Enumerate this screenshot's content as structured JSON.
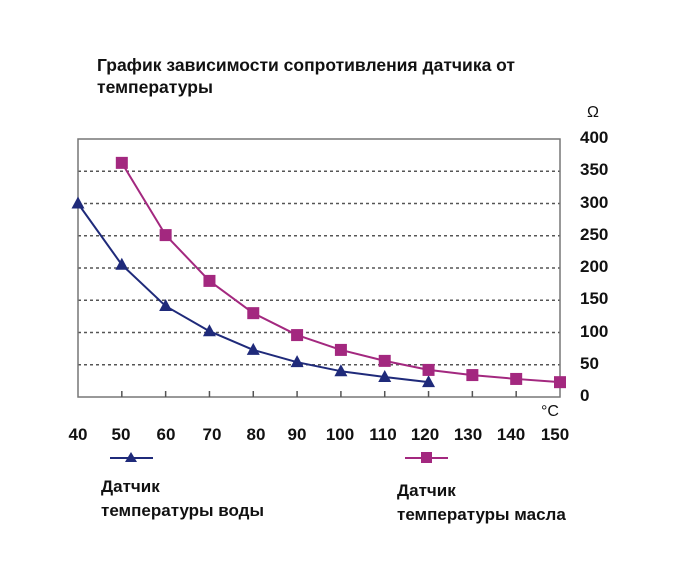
{
  "chart_data": {
    "type": "line",
    "title": "График зависимости сопротивления датчика от температуры",
    "xlabel": "°C",
    "ylabel": "Ω",
    "x": [
      40,
      50,
      60,
      70,
      80,
      90,
      100,
      110,
      120,
      130,
      140,
      150
    ],
    "xlim": [
      40,
      150
    ],
    "ylim": [
      0,
      400
    ],
    "y_ticks": [
      0,
      50,
      100,
      150,
      200,
      250,
      300,
      350,
      400
    ],
    "x_ticks": [
      40,
      50,
      60,
      70,
      80,
      90,
      100,
      110,
      120,
      130,
      140,
      150
    ],
    "y_axis_position": "right",
    "grid": "horizontal dashed",
    "legend_position": "bottom",
    "series": [
      {
        "name": "Датчик температуры воды",
        "marker": "triangle",
        "color": "#1f2a7a",
        "x": [
          40,
          50,
          60,
          70,
          80,
          90,
          100,
          110,
          120
        ],
        "values": [
          300,
          205,
          141,
          102,
          73,
          54,
          40,
          31,
          23
        ]
      },
      {
        "name": "Датчик температуры масла",
        "marker": "square",
        "color": "#a3287f",
        "x": [
          50,
          60,
          70,
          80,
          90,
          100,
          110,
          120,
          130,
          140,
          150
        ],
        "values": [
          363,
          251,
          180,
          130,
          96,
          73,
          56,
          42,
          34,
          28,
          23
        ]
      }
    ]
  },
  "title": {
    "line1": "График зависимости сопротивления датчика от",
    "line2": "температуры"
  },
  "axis": {
    "y_unit": "Ω",
    "x_unit": "°C",
    "y_ticks": [
      "400",
      "350",
      "300",
      "250",
      "200",
      "150",
      "100",
      "50",
      "0"
    ],
    "x_ticks": [
      "40",
      "50",
      "60",
      "70",
      "80",
      "90",
      "100",
      "110",
      "120",
      "130",
      "140",
      "150"
    ]
  },
  "legend": {
    "water": {
      "line1": "Датчик",
      "line2": "температуры воды"
    },
    "oil": {
      "line1": "Датчик",
      "line2": "температуры масла"
    }
  }
}
